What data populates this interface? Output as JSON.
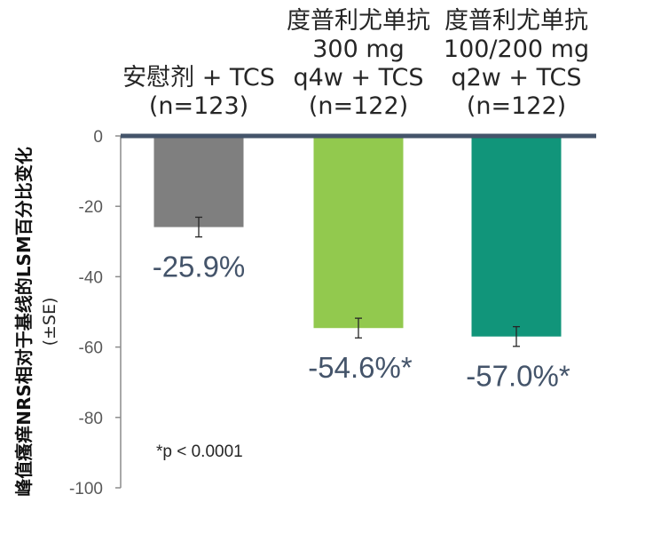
{
  "chart_data": {
    "type": "bar",
    "categories": [
      [
        "安慰剂 + TCS",
        "(n=123)"
      ],
      [
        "度普利尤单抗",
        "300 mg",
        "q4w + TCS",
        "(n=122)"
      ],
      [
        "度普利尤单抗",
        "100/200 mg",
        "q2w + TCS",
        "(n=122)"
      ]
    ],
    "values": [
      -25.9,
      -54.6,
      -57.0
    ],
    "errors": [
      2.8,
      2.8,
      2.8
    ],
    "data_labels": [
      "-25.9%",
      "-54.6%*",
      "-57.0%*"
    ],
    "colors": [
      "#7f7f7f",
      "#92c94e",
      "#11957a"
    ],
    "ylabel": "峰值瘙痒NRS相对于基线的LSM百分比变化",
    "ylabel_sub": "(±SE)",
    "ylim": [
      -100,
      0
    ],
    "yticks": [
      0,
      -20,
      -40,
      -60,
      -80,
      -100
    ],
    "ytick_labels": [
      "0",
      "-20",
      "-40",
      "-60",
      "-80",
      "-100"
    ],
    "footnote": "*p < 0.0001",
    "zero_line_color": "#44546a",
    "grid": false
  }
}
